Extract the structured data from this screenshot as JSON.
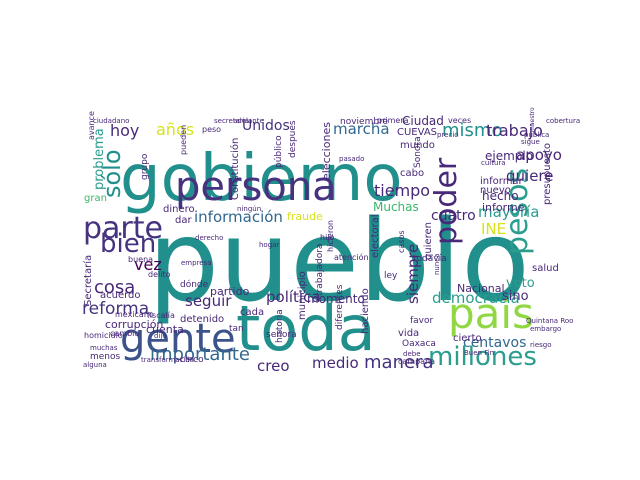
{
  "palette": {
    "teal": "#21908c",
    "seafoam": "#2a9d8f",
    "green": "#3bb56c",
    "lime": "#90d743",
    "yellow": "#d8e219",
    "purple": "#46327e",
    "indigo": "#3b528b",
    "violet": "#482878",
    "blue": "#31688e",
    "dark": "#440154"
  },
  "words": [
    {
      "t": "pueblo",
      "c": "teal"
    },
    {
      "t": "gobierno",
      "c": "teal"
    },
    {
      "t": "toda",
      "c": "teal"
    },
    {
      "t": "gente",
      "c": "indigo"
    },
    {
      "t": "persona",
      "c": "purple"
    },
    {
      "t": "país",
      "c": "lime"
    },
    {
      "t": "millones",
      "c": "seafoam"
    },
    {
      "t": "pesos",
      "c": "seafoam"
    },
    {
      "t": "parte",
      "c": "purple"
    },
    {
      "t": "bien",
      "c": "purple"
    },
    {
      "t": "poder",
      "c": "violet"
    },
    {
      "t": "sólo",
      "c": "teal"
    },
    {
      "t": "importante",
      "c": "blue"
    },
    {
      "t": "información",
      "c": "blue"
    },
    {
      "t": "mismo",
      "c": "teal"
    },
    {
      "t": "manera",
      "c": "purple"
    },
    {
      "t": "tiempo",
      "c": "violet"
    },
    {
      "t": "cosa",
      "c": "violet"
    },
    {
      "t": "vez",
      "c": "dark"
    },
    {
      "t": "reforma",
      "c": "purple"
    },
    {
      "t": "años",
      "c": "yellow"
    },
    {
      "t": "hoy",
      "c": "violet"
    },
    {
      "t": "marcha",
      "c": "blue"
    },
    {
      "t": "trabajo",
      "c": "violet"
    },
    {
      "t": "apoyo",
      "c": "violet"
    },
    {
      "t": "quiere",
      "c": "violet"
    },
    {
      "t": "política",
      "c": "violet"
    },
    {
      "t": "democracia",
      "c": "seafoam"
    },
    {
      "t": "creo",
      "c": "violet"
    },
    {
      "t": "medio",
      "c": "violet"
    },
    {
      "t": "seguir",
      "c": "violet"
    },
    {
      "t": "siempre",
      "c": "violet"
    },
    {
      "t": "mayoría",
      "c": "seafoam"
    },
    {
      "t": "centavos",
      "c": "blue"
    },
    {
      "t": "INE",
      "c": "yellow"
    },
    {
      "t": "problema",
      "c": "seafoam"
    },
    {
      "t": "Unidos",
      "c": "purple"
    },
    {
      "t": "cuatro",
      "c": "violet"
    },
    {
      "t": "voto",
      "c": "seafoam"
    },
    {
      "t": "sino",
      "c": "violet"
    },
    {
      "t": "ejemplo",
      "c": "violet"
    },
    {
      "t": "momento",
      "c": "violet"
    },
    {
      "t": "Ciudad",
      "c": "violet"
    },
    {
      "t": "Muchas",
      "c": "green"
    },
    {
      "t": "hecho",
      "c": "violet"
    },
    {
      "t": "informe",
      "c": "violet"
    },
    {
      "t": "cuenta",
      "c": "violet"
    },
    {
      "t": "corrupción",
      "c": "violet"
    },
    {
      "t": "fraude",
      "c": "yellow"
    },
    {
      "t": "dinero",
      "c": "violet"
    },
    {
      "t": "Nacional",
      "c": "violet"
    },
    {
      "t": "salud",
      "c": "violet"
    },
    {
      "t": "partido",
      "c": "violet"
    },
    {
      "t": "detenido",
      "c": "violet"
    },
    {
      "t": "municipio",
      "c": "violet"
    },
    {
      "t": "elecciones",
      "c": "violet"
    },
    {
      "t": "Constitución",
      "c": "violet"
    },
    {
      "t": "gran",
      "c": "green"
    },
    {
      "t": "cada",
      "c": "violet"
    },
    {
      "t": "dar",
      "c": "violet"
    },
    {
      "t": "presupuesto",
      "c": "violet"
    },
    {
      "t": "electoral",
      "c": "violet"
    },
    {
      "t": "quieren",
      "c": "violet"
    },
    {
      "t": "vida",
      "c": "violet"
    },
    {
      "t": "mundo",
      "c": "violet"
    },
    {
      "t": "cabo",
      "c": "violet"
    },
    {
      "t": "cierto",
      "c": "violet"
    },
    {
      "t": "CUEVAS",
      "c": "violet"
    },
    {
      "t": "Secretaría",
      "c": "violet"
    },
    {
      "t": "acuerdo",
      "c": "violet"
    },
    {
      "t": "nuevo",
      "c": "violet"
    },
    {
      "t": "informar",
      "c": "violet"
    },
    {
      "t": "Oaxaca",
      "c": "violet"
    },
    {
      "t": "haciendo",
      "c": "violet"
    },
    {
      "t": "diferentes",
      "c": "violet"
    },
    {
      "t": "todavía",
      "c": "violet"
    },
    {
      "t": "grupo",
      "c": "violet"
    },
    {
      "t": "ley",
      "c": "violet"
    },
    {
      "t": "después",
      "c": "violet"
    },
    {
      "t": "Sonora",
      "c": "violet"
    },
    {
      "t": "noviembre",
      "c": "violet"
    },
    {
      "t": "primera",
      "c": "violet"
    },
    {
      "t": "veces",
      "c": "violet"
    },
    {
      "t": "cobertura",
      "c": "violet"
    },
    {
      "t": "adelante",
      "c": "violet"
    },
    {
      "t": "secretaria",
      "c": "violet"
    },
    {
      "t": "ciudadano",
      "c": "violet"
    },
    {
      "t": "avance",
      "c": "violet"
    },
    {
      "t": "peso",
      "c": "violet"
    },
    {
      "t": "pueden",
      "c": "violet"
    },
    {
      "t": "público",
      "c": "violet"
    },
    {
      "t": "pública",
      "c": "violet"
    },
    {
      "t": "maestro",
      "c": "violet"
    },
    {
      "t": "buena",
      "c": "violet"
    },
    {
      "t": "mexicano",
      "c": "violet"
    },
    {
      "t": "fiscalía",
      "c": "violet"
    },
    {
      "t": "delito",
      "c": "violet"
    },
    {
      "t": "cambio",
      "c": "violet"
    },
    {
      "t": "menos",
      "c": "violet"
    },
    {
      "t": "dónde",
      "c": "violet"
    },
    {
      "t": "cinco",
      "c": "violet"
    },
    {
      "t": "transformación",
      "c": "violet"
    },
    {
      "t": "historia",
      "c": "violet"
    },
    {
      "t": "trabajadora",
      "c": "violet"
    },
    {
      "t": "campaña",
      "c": "violet"
    },
    {
      "t": "favor",
      "c": "violet"
    },
    {
      "t": "debe",
      "c": "violet"
    },
    {
      "t": "Buen Fin",
      "c": "violet"
    },
    {
      "t": "precio",
      "c": "violet"
    },
    {
      "t": "atención",
      "c": "violet"
    },
    {
      "t": "hicieron",
      "c": "violet"
    },
    {
      "t": "empresa",
      "c": "violet"
    },
    {
      "t": "derecho",
      "c": "violet"
    },
    {
      "t": "ningún",
      "c": "violet"
    },
    {
      "t": "casos",
      "c": "violet"
    },
    {
      "t": "nunca",
      "c": "violet"
    },
    {
      "t": "Quintana Roo",
      "c": "violet"
    },
    {
      "t": "embargo",
      "c": "violet"
    },
    {
      "t": "riesgo",
      "c": "violet"
    },
    {
      "t": "homicidio",
      "c": "violet"
    },
    {
      "t": "muchas",
      "c": "violet"
    },
    {
      "t": "alguna",
      "c": "violet"
    },
    {
      "t": "señora",
      "c": "violet"
    },
    {
      "t": "tan",
      "c": "violet"
    },
    {
      "t": "dijo",
      "c": "violet"
    },
    {
      "t": "pasado",
      "c": "violet"
    },
    {
      "t": "cultura",
      "c": "violet"
    },
    {
      "t": "hogar",
      "c": "violet"
    },
    {
      "t": "sigue",
      "c": "violet"
    },
    {
      "t": "hijo",
      "c": "violet"
    }
  ]
}
